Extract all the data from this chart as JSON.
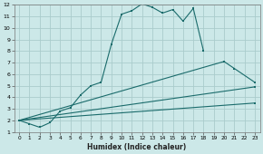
{
  "xlabel": "Humidex (Indice chaleur)",
  "bg_color": "#cce8e8",
  "grid_color": "#aacccc",
  "line_color": "#1a6b6b",
  "xlim": [
    -0.5,
    23.5
  ],
  "ylim": [
    1,
    12
  ],
  "xticks": [
    0,
    1,
    2,
    3,
    4,
    5,
    6,
    7,
    8,
    9,
    10,
    11,
    12,
    13,
    14,
    15,
    16,
    17,
    18,
    19,
    20,
    21,
    22,
    23
  ],
  "yticks": [
    1,
    2,
    3,
    4,
    5,
    6,
    7,
    8,
    9,
    10,
    11,
    12
  ],
  "line1_x": [
    0,
    1,
    2,
    3,
    4,
    5,
    6,
    7,
    8,
    9,
    10,
    11,
    12,
    13,
    14,
    15,
    16,
    17,
    18
  ],
  "line1_y": [
    2.0,
    1.7,
    1.4,
    1.8,
    2.8,
    3.1,
    4.2,
    5.0,
    5.3,
    8.6,
    11.2,
    11.5,
    12.1,
    11.8,
    11.3,
    11.6,
    10.6,
    11.7,
    8.0
  ],
  "line2_x": [
    0,
    20,
    21,
    23
  ],
  "line2_y": [
    2.0,
    7.1,
    6.5,
    5.3
  ],
  "line3_x": [
    0,
    23
  ],
  "line3_y": [
    2.0,
    4.9
  ],
  "line4_x": [
    0,
    23
  ],
  "line4_y": [
    2.0,
    3.5
  ]
}
